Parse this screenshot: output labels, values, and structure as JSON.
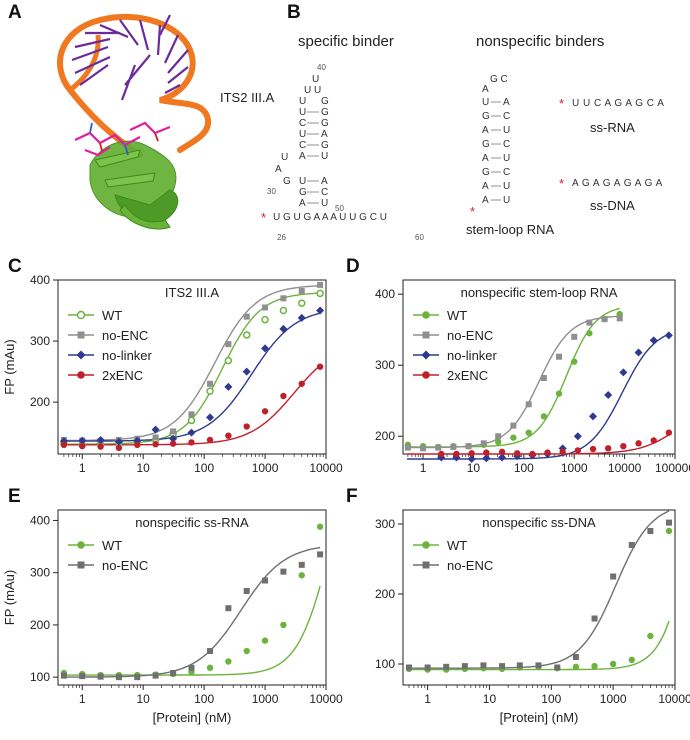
{
  "panels": {
    "A": "A",
    "B": "B",
    "C": "C",
    "D": "D",
    "E": "E",
    "F": "F"
  },
  "structure": {
    "specific_title": "specific binder",
    "nonspecific_title": "nonspecific binders",
    "its2_label": "ITS2 III.A",
    "stemloop_label": "stem-loop RNA",
    "ssrna_label": "ss-RNA",
    "ssdna_label": "ss-DNA",
    "ssrna_seq": "U U C A G A G C A",
    "ssdna_seq": "A G A G A G A G A",
    "star": "*",
    "its2_tail": "U G U G A A A U U G C U",
    "its2_top": "U U",
    "its2_loop_top": "U",
    "its2_pairs": [
      [
        "U",
        "G"
      ],
      [
        "C",
        "G"
      ],
      [
        "U",
        "A"
      ],
      [
        "C",
        "G"
      ],
      [
        "A",
        "U"
      ]
    ],
    "its2_lower_pairs": [
      [
        "U",
        "A"
      ],
      [
        "G",
        "C"
      ],
      [
        "A",
        "U"
      ]
    ],
    "its2_bulge": [
      "A",
      "U",
      "G"
    ],
    "its2_nums": {
      "n40": "40",
      "n30": "30",
      "n50": "50",
      "n26": "26",
      "n60": "60"
    },
    "stemloop_loop": "G C",
    "stemloop_loop_a": "A",
    "stemloop_pairs": [
      [
        "U",
        "A"
      ],
      [
        "G",
        "C"
      ],
      [
        "A",
        "U"
      ],
      [
        "G",
        "C"
      ],
      [
        "A",
        "U"
      ],
      [
        "G",
        "C"
      ],
      [
        "A",
        "U"
      ],
      [
        "A",
        "U"
      ]
    ],
    "molecule_colors": {
      "rna_backbone": "#f07820",
      "bases": "#6a2c9a",
      "protein": "#5fae2e",
      "ligand": "#e0209a"
    }
  },
  "chart_data": [
    {
      "panel": "C",
      "type": "scatter",
      "title": "ITS2 III.A",
      "xlabel": "",
      "ylabel": "FP (mAu)",
      "xscale": "log",
      "xlim": [
        0.4,
        10000
      ],
      "ylim": [
        115,
        400
      ],
      "xticks": [
        1,
        10,
        100,
        1000,
        10000
      ],
      "xtick_labels": [
        "1",
        "10",
        "100",
        "1000",
        "10000"
      ],
      "yticks": [
        100,
        200,
        300,
        400
      ],
      "ytick_labels": [
        "100",
        "200",
        "300",
        "400"
      ],
      "legend": "top-left",
      "series": [
        {
          "name": "WT",
          "color": "#6cb33e",
          "marker": "open-circle",
          "x": [
            0.5,
            1,
            2,
            4,
            8,
            16,
            31,
            62,
            125,
            250,
            500,
            1000,
            2000,
            4000,
            8000
          ],
          "y": [
            132,
            130,
            131,
            133,
            135,
            138,
            148,
            170,
            218,
            268,
            310,
            335,
            350,
            362,
            378
          ],
          "fit": {
            "bottom": 131,
            "top": 380,
            "ec50": 200,
            "hill": 1.4
          }
        },
        {
          "name": "no-ENC",
          "color": "#8f8f8f",
          "marker": "square",
          "x": [
            0.5,
            1,
            2,
            4,
            8,
            16,
            31,
            62,
            125,
            250,
            500,
            1000,
            2000,
            4000,
            8000
          ],
          "y": [
            138,
            137,
            136,
            138,
            140,
            142,
            152,
            180,
            230,
            295,
            340,
            355,
            370,
            382,
            392
          ],
          "fit": {
            "bottom": 137,
            "top": 392,
            "ec50": 150,
            "hill": 1.3
          }
        },
        {
          "name": "no-linker",
          "color": "#2f3a8f",
          "marker": "diamond",
          "x": [
            0.5,
            1,
            2,
            4,
            8,
            16,
            31,
            62,
            125,
            250,
            500,
            1000,
            2000,
            4000,
            8000
          ],
          "y": [
            136,
            137,
            138,
            135,
            137,
            155,
            140,
            150,
            175,
            225,
            250,
            288,
            320,
            338,
            350
          ],
          "fit": {
            "bottom": 136,
            "top": 355,
            "ec50": 600,
            "hill": 1.2
          }
        },
        {
          "name": "2xENC",
          "color": "#c0202a",
          "marker": "circle",
          "x": [
            0.5,
            1,
            2,
            4,
            8,
            16,
            31,
            62,
            125,
            250,
            500,
            1000,
            2000,
            4000,
            8000
          ],
          "y": [
            130,
            128,
            127,
            125,
            130,
            131,
            132,
            134,
            138,
            145,
            160,
            185,
            210,
            230,
            258
          ],
          "fit": {
            "bottom": 130,
            "top": 300,
            "ec50": 3000,
            "hill": 1.2
          }
        }
      ]
    },
    {
      "panel": "D",
      "type": "scatter",
      "title": "nonspecific stem-loop RNA",
      "xlabel": "",
      "ylabel": "",
      "xscale": "log",
      "xlim": [
        0.4,
        100000
      ],
      "ylim": [
        175,
        420
      ],
      "xticks": [
        1,
        10,
        100,
        1000,
        10000,
        100000
      ],
      "xtick_labels": [
        "1",
        "10",
        "100",
        "1000",
        "10000",
        "100000"
      ],
      "yticks": [
        200,
        300,
        400
      ],
      "ytick_labels": [
        "200",
        "300",
        "400"
      ],
      "legend": "top-left",
      "series": [
        {
          "name": "WT",
          "color": "#6cb33e",
          "marker": "circle",
          "x": [
            0.5,
            1,
            2,
            4,
            8,
            16,
            31,
            62,
            125,
            250,
            500,
            1000,
            2000,
            4000,
            8000
          ],
          "y": [
            188,
            186,
            185,
            186,
            186,
            188,
            192,
            198,
            205,
            228,
            260,
            305,
            345,
            365,
            372
          ],
          "fit": {
            "bottom": 185,
            "top": 385,
            "ec50": 700,
            "hill": 1.5
          }
        },
        {
          "name": "no-ENC",
          "color": "#8f8f8f",
          "marker": "square",
          "x": [
            0.5,
            1,
            2,
            4,
            8,
            16,
            31,
            62,
            125,
            250,
            500,
            1000,
            2000,
            4000,
            8000
          ],
          "y": [
            184,
            183,
            184,
            185,
            186,
            190,
            200,
            215,
            245,
            282,
            312,
            340,
            360,
            365,
            366
          ],
          "fit": {
            "bottom": 184,
            "top": 370,
            "ec50": 200,
            "hill": 1.4
          }
        },
        {
          "name": "no-linker",
          "color": "#2f3a8f",
          "marker": "diamond",
          "x": [
            2.3,
            4.6,
            9.2,
            18,
            37,
            74,
            148,
            295,
            590,
            1180,
            2360,
            4720,
            9440,
            18900,
            37800,
            75500
          ],
          "y": [
            170,
            170,
            168,
            169,
            170,
            172,
            173,
            175,
            183,
            200,
            228,
            258,
            290,
            318,
            335,
            342
          ],
          "fit": {
            "bottom": 168,
            "top": 355,
            "ec50": 9000,
            "hill": 1.3
          }
        },
        {
          "name": "2xENC",
          "color": "#c0202a",
          "marker": "circle",
          "x": [
            2.3,
            4.6,
            9.2,
            18,
            37,
            74,
            148,
            295,
            590,
            1180,
            2360,
            4720,
            9440,
            18900,
            37800,
            75500
          ],
          "y": [
            175,
            175,
            176,
            177,
            178,
            176,
            175,
            177,
            178,
            180,
            182,
            183,
            186,
            190,
            194,
            205
          ],
          "fit": {
            "bottom": 175,
            "top": 260,
            "ec50": 150000,
            "hill": 1.1
          }
        }
      ]
    },
    {
      "panel": "E",
      "type": "scatter",
      "title": "nonspecific ss-RNA",
      "xlabel": "[Protein] (nM)",
      "ylabel": "FP (mAu)",
      "xscale": "log",
      "xlim": [
        0.4,
        10000
      ],
      "ylim": [
        85,
        420
      ],
      "xticks": [
        1,
        10,
        100,
        1000,
        10000
      ],
      "xtick_labels": [
        "1",
        "10",
        "100",
        "1000",
        "10000"
      ],
      "yticks": [
        100,
        200,
        300,
        400
      ],
      "ytick_labels": [
        "100",
        "200",
        "300",
        "400"
      ],
      "legend": "top-left",
      "series": [
        {
          "name": "WT",
          "color": "#6cb33e",
          "marker": "circle",
          "x": [
            0.5,
            1,
            2,
            4,
            8,
            16,
            31,
            62,
            125,
            250,
            500,
            1000,
            2000,
            4000,
            8000
          ],
          "y": [
            108,
            106,
            104,
            104,
            104,
            105,
            106,
            110,
            118,
            130,
            150,
            170,
            200,
            295,
            388
          ],
          "fit": {
            "bottom": 104,
            "top": 600,
            "ec50": 12000,
            "hill": 1.6
          }
        },
        {
          "name": "no-ENC",
          "color": "#6f6f6f",
          "marker": "square",
          "x": [
            0.5,
            1,
            2,
            4,
            8,
            16,
            31,
            62,
            125,
            250,
            500,
            1000,
            2000,
            4000,
            8000
          ],
          "y": [
            103,
            102,
            101,
            100,
            100,
            103,
            108,
            118,
            150,
            232,
            265,
            285,
            302,
            315,
            335
          ],
          "fit": {
            "bottom": 100,
            "top": 355,
            "ec50": 400,
            "hill": 1.2
          }
        }
      ]
    },
    {
      "panel": "F",
      "type": "scatter",
      "title": "nonspecific ss-DNA",
      "xlabel": "[Protein] (nM)",
      "ylabel": "",
      "xscale": "log",
      "xlim": [
        0.4,
        10000
      ],
      "ylim": [
        70,
        320
      ],
      "xticks": [
        1,
        10,
        100,
        1000,
        10000
      ],
      "xtick_labels": [
        "1",
        "10",
        "100",
        "1000",
        "10000"
      ],
      "yticks": [
        100,
        200,
        300
      ],
      "ytick_labels": [
        "100",
        "200",
        "300"
      ],
      "legend": "top-left",
      "series": [
        {
          "name": "WT",
          "color": "#6cb33e",
          "marker": "circle",
          "x": [
            0.5,
            1,
            2,
            4,
            8,
            16,
            31,
            62,
            125,
            250,
            500,
            1000,
            2000,
            4000,
            8000
          ],
          "y": [
            93,
            92,
            92,
            93,
            94,
            93,
            95,
            96,
            94,
            96,
            97,
            100,
            106,
            140,
            290
          ],
          "fit": {
            "bottom": 92,
            "top": 700,
            "ec50": 25000,
            "hill": 1.8
          }
        },
        {
          "name": "no-ENC",
          "color": "#6f6f6f",
          "marker": "square",
          "x": [
            0.5,
            1,
            2,
            4,
            8,
            16,
            31,
            62,
            125,
            250,
            500,
            1000,
            2000,
            4000,
            8000
          ],
          "y": [
            95,
            95,
            96,
            97,
            98,
            97,
            98,
            98,
            95,
            110,
            165,
            225,
            270,
            290,
            302
          ],
          "fit": {
            "bottom": 94,
            "top": 330,
            "ec50": 1100,
            "hill": 1.5
          }
        }
      ]
    }
  ]
}
